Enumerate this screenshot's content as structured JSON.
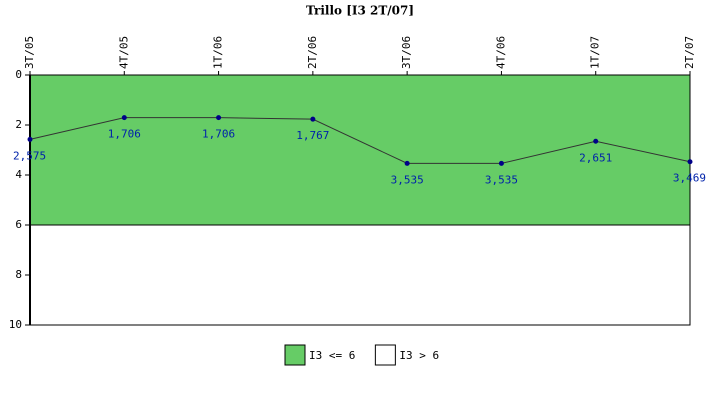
{
  "chart_data": {
    "type": "line",
    "title": "Trillo [I3 2T/07]",
    "categories": [
      "3T/05",
      "4T/05",
      "1T/06",
      "2T/06",
      "3T/06",
      "4T/06",
      "1T/07",
      "2T/07"
    ],
    "series": [
      {
        "name": "I3",
        "color": "#333333",
        "values": [
          2.575,
          1.706,
          1.706,
          1.767,
          3.535,
          3.535,
          2.651,
          3.469
        ],
        "value_labels": [
          "2,575",
          "1,706",
          "1,706",
          "1,767",
          "3,535",
          "3,535",
          "2,651",
          "3,469"
        ]
      }
    ],
    "bands": [
      {
        "name": "I3 <= 6",
        "color": "#66cc66",
        "from": 0,
        "to": 6
      },
      {
        "name": "I3 > 6",
        "color": "#ffffff",
        "from": 6,
        "to": 10
      }
    ],
    "ylim": [
      0,
      10
    ],
    "yticks": [
      0,
      2,
      4,
      6,
      8,
      10
    ],
    "y_inverted": true
  }
}
